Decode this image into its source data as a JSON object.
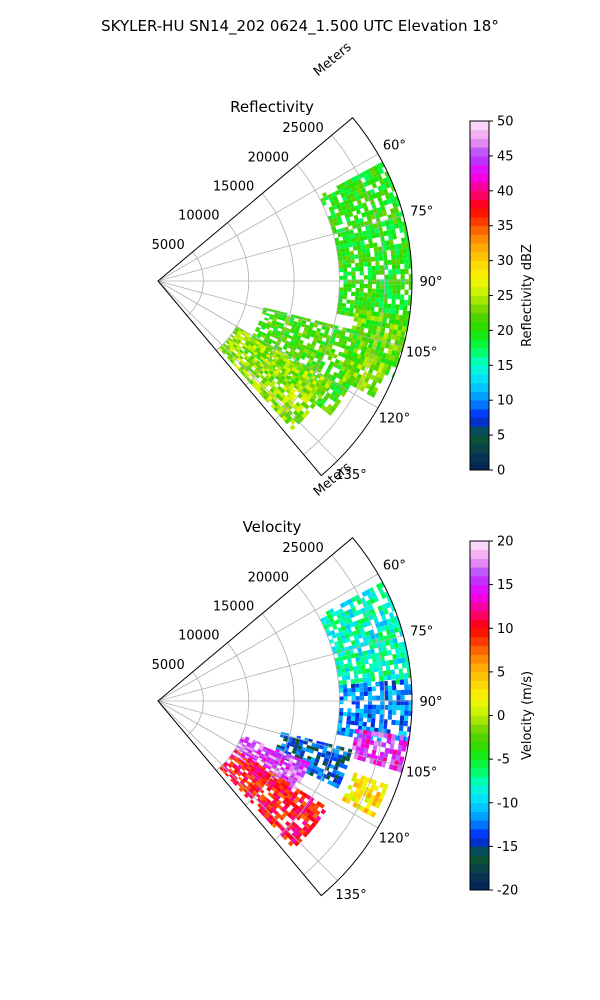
{
  "title": "SKYLER-HU  SN14_202  0624_1.500 UTC Elevation 18°",
  "panels": [
    {
      "title": "Reflectivity",
      "radial_axis_label": "Meters",
      "colorbar_label": "Reflectivity dBZ",
      "colorbar_ticks": [
        "0",
        "5",
        "10",
        "15",
        "20",
        "25",
        "30",
        "35",
        "40",
        "45",
        "50"
      ],
      "colorbar_range": [
        0,
        50
      ]
    },
    {
      "title": "Velocity",
      "radial_axis_label": "Meters",
      "colorbar_label": "Velocity (m/s)",
      "colorbar_ticks": [
        "-20",
        "-15",
        "-10",
        "-5",
        "0",
        "5",
        "10",
        "15",
        "20"
      ],
      "colorbar_range": [
        -20,
        20
      ]
    }
  ],
  "chart_data": [
    {
      "type": "heatmap",
      "projection": "polar-sector",
      "title": "Reflectivity",
      "radial_label": "Meters",
      "radial_ticks": [
        5000,
        10000,
        15000,
        20000,
        25000
      ],
      "r_range": [
        0,
        28000
      ],
      "theta_range_deg": [
        50,
        140
      ],
      "theta_ticks_deg": [
        60,
        75,
        90,
        105,
        120,
        135
      ],
      "theta_tick_labels": [
        "60°",
        "75°",
        "90°",
        "105°",
        "120°",
        "135°"
      ],
      "grid": true,
      "colorbar": {
        "label": "Reflectivity dBZ",
        "min": 0,
        "max": 50,
        "ticks": [
          0,
          5,
          10,
          15,
          20,
          25,
          30,
          35,
          40,
          45,
          50
        ]
      },
      "echo_regions": [
        {
          "azimuth_deg": [
            62,
            100
          ],
          "range_m": [
            20000,
            28000
          ],
          "value": 20
        },
        {
          "azimuth_deg": [
            98,
            112
          ],
          "range_m": [
            22000,
            28000
          ],
          "value": 22
        },
        {
          "azimuth_deg": [
            104,
            128
          ],
          "range_m": [
            12000,
            24000
          ],
          "value": 21
        },
        {
          "azimuth_deg": [
            120,
            137
          ],
          "range_m": [
            10000,
            22000
          ],
          "value": 24
        },
        {
          "azimuth_deg": [
            110,
            118
          ],
          "range_m": [
            23000,
            27000
          ],
          "value": 23
        }
      ]
    },
    {
      "type": "heatmap",
      "projection": "polar-sector",
      "title": "Velocity",
      "radial_label": "Meters",
      "radial_ticks": [
        5000,
        10000,
        15000,
        20000,
        25000
      ],
      "r_range": [
        0,
        28000
      ],
      "theta_range_deg": [
        50,
        140
      ],
      "theta_ticks_deg": [
        60,
        75,
        90,
        105,
        120,
        135
      ],
      "theta_tick_labels": [
        "60°",
        "75°",
        "90°",
        "105°",
        "120°",
        "135°"
      ],
      "grid": true,
      "colorbar": {
        "label": "Velocity (m/s)",
        "min": -20,
        "max": 20,
        "ticks": [
          -20,
          -15,
          -10,
          -5,
          0,
          5,
          10,
          15,
          20
        ]
      },
      "echo_regions": [
        {
          "azimuth_deg": [
            62,
            85
          ],
          "range_m": [
            20000,
            28000
          ],
          "value": -8
        },
        {
          "azimuth_deg": [
            85,
            100
          ],
          "range_m": [
            20000,
            28000
          ],
          "value": -12
        },
        {
          "azimuth_deg": [
            98,
            106
          ],
          "range_m": [
            22000,
            28000
          ],
          "value": 15
        },
        {
          "azimuth_deg": [
            104,
            116
          ],
          "range_m": [
            14000,
            22000
          ],
          "value": -14
        },
        {
          "azimuth_deg": [
            112,
            126
          ],
          "range_m": [
            10000,
            18000
          ],
          "value": 16
        },
        {
          "azimuth_deg": [
            122,
            137
          ],
          "range_m": [
            10000,
            22000
          ],
          "value": 10
        },
        {
          "azimuth_deg": [
            110,
            118
          ],
          "range_m": [
            23000,
            27000
          ],
          "value": 3
        }
      ]
    }
  ]
}
